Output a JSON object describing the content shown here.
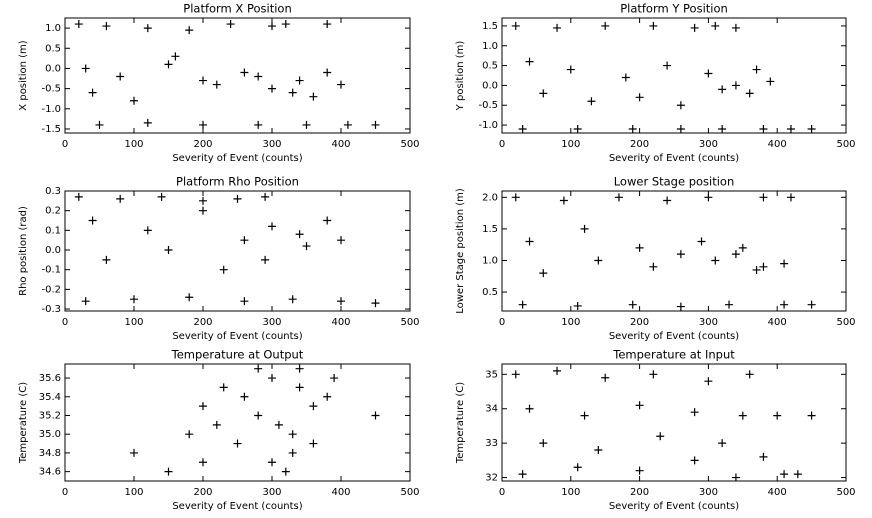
{
  "chart_data": [
    {
      "type": "scatter",
      "title": "Platform X Position",
      "xlabel": "Severity of Event (counts)",
      "ylabel": "X position (m)",
      "color": "#000000",
      "marker": "+",
      "xlim": [
        0,
        500
      ],
      "xticks": [
        0,
        100,
        200,
        300,
        400,
        500
      ],
      "ylim": [
        -1.6,
        1.25
      ],
      "yticks": [
        -1.5,
        {
          "value": -1,
          "label": "-1.0"
        },
        -0.5,
        {
          "value": 0,
          "label": "0.0"
        },
        0.5,
        {
          "value": 1,
          "label": "1.0"
        }
      ],
      "x": [
        20,
        60,
        120,
        180,
        240,
        300,
        320,
        380,
        30,
        80,
        150,
        200,
        260,
        300,
        340,
        380,
        400,
        40,
        100,
        160,
        220,
        280,
        330,
        360,
        50,
        120,
        200,
        280,
        350,
        410,
        450
      ],
      "values": [
        1.1,
        1.05,
        1.0,
        0.95,
        1.1,
        1.05,
        1.1,
        1.1,
        0.0,
        -0.2,
        0.1,
        -0.3,
        -0.1,
        -0.5,
        -0.3,
        -0.1,
        -0.4,
        -0.6,
        -0.8,
        0.3,
        -0.4,
        -0.2,
        -0.6,
        -0.7,
        -1.4,
        -1.35,
        -1.4,
        -1.4,
        -1.4,
        -1.4,
        -1.4
      ]
    },
    {
      "type": "scatter",
      "title": "Platform Y Position",
      "xlabel": "Severity of Event (counts)",
      "ylabel": "Y position (m)",
      "color": "#000000",
      "marker": "+",
      "xlim": [
        0,
        500
      ],
      "xticks": [
        0,
        100,
        200,
        300,
        400,
        500
      ],
      "ylim": [
        -1.2,
        1.7
      ],
      "yticks": [
        {
          "value": -1,
          "label": "-1.0"
        },
        -0.5,
        {
          "value": 0,
          "label": "0.0"
        },
        0.5,
        {
          "value": 1,
          "label": "1.0"
        },
        1.5
      ],
      "x": [
        20,
        80,
        150,
        220,
        280,
        310,
        340,
        40,
        100,
        180,
        240,
        300,
        340,
        370,
        390,
        60,
        130,
        200,
        260,
        320,
        360,
        30,
        110,
        190,
        260,
        320,
        380,
        420,
        450
      ],
      "values": [
        1.5,
        1.45,
        1.5,
        1.5,
        1.45,
        1.5,
        1.45,
        0.6,
        0.4,
        0.2,
        0.5,
        0.3,
        0.0,
        0.4,
        0.1,
        -0.2,
        -0.4,
        -0.3,
        -0.5,
        -0.1,
        -0.2,
        -1.1,
        -1.1,
        -1.1,
        -1.1,
        -1.1,
        -1.1,
        -1.1,
        -1.1
      ]
    },
    {
      "type": "scatter",
      "title": "Platform Rho Position",
      "xlabel": "Severity of Event (counts)",
      "ylabel": "Rho position (rad)",
      "color": "#000000",
      "marker": "+",
      "xlim": [
        0,
        500
      ],
      "xticks": [
        0,
        100,
        200,
        300,
        400,
        500
      ],
      "ylim": [
        -0.31,
        0.3
      ],
      "yticks": [
        -0.3,
        -0.2,
        -0.1,
        {
          "value": 0,
          "label": "0.0"
        },
        0.1,
        0.2,
        0.3
      ],
      "x": [
        20,
        80,
        140,
        200,
        250,
        290,
        40,
        120,
        200,
        260,
        300,
        340,
        380,
        400,
        60,
        150,
        230,
        290,
        350,
        30,
        100,
        180,
        260,
        330,
        400,
        450
      ],
      "values": [
        0.27,
        0.26,
        0.27,
        0.25,
        0.26,
        0.27,
        0.15,
        0.1,
        0.2,
        0.05,
        0.12,
        0.08,
        0.15,
        0.05,
        -0.05,
        0.0,
        -0.1,
        -0.05,
        0.02,
        -0.26,
        -0.25,
        -0.24,
        -0.26,
        -0.25,
        -0.26,
        -0.27
      ]
    },
    {
      "type": "scatter",
      "title": "Lower Stage position",
      "xlabel": "Severity of Event (counts)",
      "ylabel": "Lower Stage position (m)",
      "color": "#000000",
      "marker": "+",
      "xlim": [
        0,
        500
      ],
      "xticks": [
        0,
        100,
        200,
        300,
        400,
        500
      ],
      "ylim": [
        0.2,
        2.1
      ],
      "yticks": [
        0.5,
        {
          "value": 1,
          "label": "1.0"
        },
        1.5,
        {
          "value": 2,
          "label": "2.0"
        }
      ],
      "x": [
        20,
        90,
        170,
        240,
        300,
        380,
        420,
        40,
        120,
        200,
        260,
        310,
        350,
        380,
        410,
        60,
        140,
        220,
        290,
        340,
        370,
        30,
        110,
        190,
        260,
        330,
        410,
        450
      ],
      "values": [
        2.0,
        1.95,
        2.0,
        1.95,
        2.0,
        2.0,
        2.0,
        1.3,
        1.5,
        1.2,
        1.1,
        1.0,
        1.2,
        0.9,
        0.95,
        0.8,
        1.0,
        0.9,
        1.3,
        1.1,
        0.85,
        0.3,
        0.28,
        0.3,
        0.27,
        0.3,
        0.3,
        0.3
      ]
    },
    {
      "type": "scatter",
      "title": "Temperature at Output",
      "xlabel": "Severity of Event (counts)",
      "ylabel": "Temperature (C)",
      "color": "#000000",
      "marker": "+",
      "xlim": [
        0,
        500
      ],
      "xticks": [
        0,
        100,
        200,
        300,
        400,
        500
      ],
      "ylim": [
        34.5,
        35.75
      ],
      "yticks": [
        34.6,
        34.8,
        {
          "value": 35,
          "label": "35.0"
        },
        35.2,
        35.4,
        35.6
      ],
      "x": [
        320,
        300,
        330,
        360,
        330,
        310,
        450,
        360,
        380,
        340,
        390,
        340,
        150,
        200,
        100,
        250,
        180,
        220,
        280,
        200,
        260,
        230,
        300,
        280
      ],
      "values": [
        34.6,
        34.7,
        34.8,
        34.9,
        35.0,
        35.1,
        35.2,
        35.3,
        35.4,
        35.5,
        35.6,
        35.7,
        34.6,
        34.7,
        34.8,
        34.9,
        35.0,
        35.1,
        35.2,
        35.3,
        35.4,
        35.5,
        35.6,
        35.7
      ]
    },
    {
      "type": "scatter",
      "title": "Temperature at Input",
      "xlabel": "Severity of Event (counts)",
      "ylabel": "Temperature (C)",
      "color": "#000000",
      "marker": "+",
      "xlim": [
        0,
        500
      ],
      "xticks": [
        0,
        100,
        200,
        300,
        400,
        500
      ],
      "ylim": [
        31.9,
        35.3
      ],
      "yticks": [
        32,
        33,
        34,
        35
      ],
      "x": [
        20,
        80,
        150,
        220,
        300,
        360,
        40,
        120,
        200,
        280,
        350,
        400,
        450,
        60,
        140,
        230,
        320,
        380,
        30,
        110,
        200,
        280,
        340,
        410,
        430
      ],
      "values": [
        35.0,
        35.1,
        34.9,
        35.0,
        34.8,
        35.0,
        34.0,
        33.8,
        34.1,
        33.9,
        33.8,
        33.8,
        33.8,
        33.0,
        32.8,
        33.2,
        33.0,
        32.6,
        32.1,
        32.3,
        32.2,
        32.5,
        32.0,
        32.1,
        32.1
      ]
    }
  ]
}
